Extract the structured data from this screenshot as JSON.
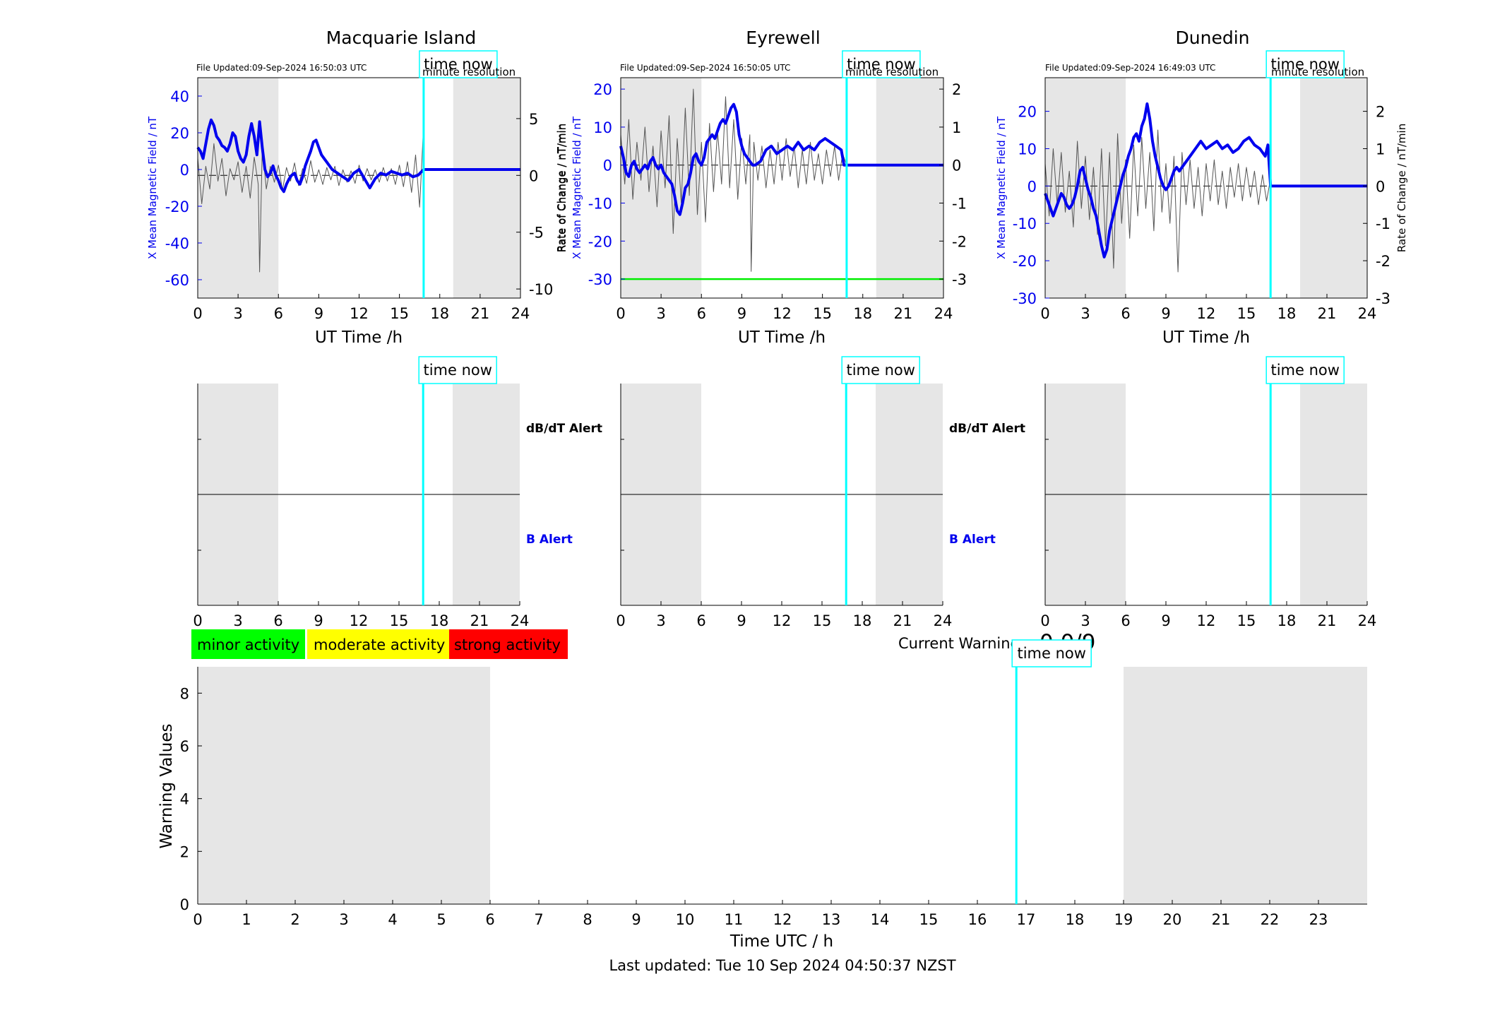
{
  "time_now_label": "time now",
  "legend": {
    "minor": "minor activity",
    "moderate": "moderate activity",
    "strong": "strong activity"
  },
  "current_warning": {
    "label": "Current Warning:",
    "value": "0.0/9"
  },
  "footer": "Last updated: Tue 10 Sep 2024 04:50:37 NZST",
  "colors": {
    "field_line": "#0000ee",
    "rate_line": "#555555",
    "time_now": "#00ffff",
    "night_shade": "#e6e6e6",
    "minor": "#00ff00",
    "moderate": "#ffff00",
    "strong": "#ff0000",
    "threshold": "#00ee00"
  },
  "chart_data": [
    {
      "type": "line",
      "title": "Macquarie Island",
      "file_updated": "File Updated:09-Sep-2024 16:50:03 UTC",
      "resolution": "minute resolution",
      "xlabel": "UT Time /h",
      "ylabel_left": "X Mean Magnetic Field / nT",
      "ylabel_right": "Rate of Change / nT/min",
      "xlim": [
        0,
        24
      ],
      "xticks": [
        0,
        3,
        6,
        9,
        12,
        15,
        18,
        21,
        24
      ],
      "ylim_left": [
        -70,
        50
      ],
      "yticks_left": [
        -60,
        -40,
        -20,
        0,
        20,
        40
      ],
      "ylim_right": [
        -10.8,
        8.6
      ],
      "yticks_right": [
        -10,
        -5,
        0,
        5
      ],
      "time_now": 16.8,
      "shaded_x": [
        [
          0,
          6
        ],
        [
          19,
          24
        ]
      ],
      "series": [
        {
          "axis": "left",
          "x": [
            0,
            0.2,
            0.4,
            0.6,
            0.8,
            1.0,
            1.2,
            1.4,
            1.6,
            1.8,
            2.0,
            2.2,
            2.4,
            2.6,
            2.8,
            3.0,
            3.2,
            3.4,
            3.6,
            3.8,
            4.0,
            4.2,
            4.4,
            4.6,
            4.8,
            5.0,
            5.2,
            5.4,
            5.6,
            5.8,
            6.0,
            6.2,
            6.4,
            6.6,
            6.8,
            7.0,
            7.2,
            7.4,
            7.6,
            7.8,
            8.0,
            8.2,
            8.4,
            8.6,
            8.8,
            9.0,
            9.2,
            9.4,
            9.6,
            9.8,
            10.0,
            10.4,
            10.8,
            11.2,
            11.6,
            12.0,
            12.4,
            12.8,
            13.2,
            13.6,
            14.0,
            14.4,
            14.8,
            15.2,
            15.6,
            16.0,
            16.4,
            16.8,
            17,
            24
          ],
          "y": [
            12,
            10,
            6,
            14,
            22,
            27,
            24,
            18,
            16,
            13,
            12,
            10,
            14,
            20,
            18,
            10,
            6,
            4,
            8,
            18,
            25,
            18,
            8,
            26,
            12,
            0,
            -4,
            -2,
            2,
            -3,
            -6,
            -10,
            -12,
            -8,
            -5,
            -3,
            -2,
            -6,
            -8,
            -4,
            2,
            6,
            10,
            15,
            16,
            12,
            8,
            6,
            4,
            2,
            0,
            -2,
            -4,
            -6,
            -2,
            0,
            -5,
            -10,
            -5,
            -2,
            -3,
            -1,
            -2,
            -3,
            -2,
            -4,
            -3,
            0,
            0,
            0
          ]
        },
        {
          "axis": "right",
          "x": [
            0,
            0.3,
            0.6,
            0.9,
            1.2,
            1.5,
            1.8,
            2.1,
            2.4,
            2.7,
            3.0,
            3.3,
            3.6,
            3.9,
            4.2,
            4.5,
            4.6,
            4.8,
            5.1,
            5.4,
            5.7,
            6.0,
            6.3,
            6.6,
            6.9,
            7.2,
            7.5,
            7.8,
            8.1,
            8.4,
            8.7,
            9.0,
            9.3,
            9.6,
            9.9,
            10.2,
            10.5,
            10.8,
            11.1,
            11.4,
            11.7,
            12.0,
            12.3,
            12.6,
            12.9,
            13.2,
            13.5,
            13.8,
            14.1,
            14.4,
            14.7,
            15.0,
            15.3,
            15.6,
            15.9,
            16.2,
            16.5,
            16.8
          ],
          "y": [
            1.5,
            -2.5,
            0.8,
            -1.2,
            2.8,
            -0.5,
            1.5,
            -1.8,
            0.6,
            -0.4,
            1.2,
            -1.5,
            0.8,
            -2.0,
            1.6,
            -0.8,
            -8.5,
            2.5,
            -1.2,
            0.8,
            -0.6,
            0.9,
            -1.3,
            0.7,
            -0.5,
            1.1,
            -0.9,
            0.6,
            -0.7,
            1.3,
            -0.6,
            0.5,
            -0.8,
            0.7,
            -0.4,
            0.8,
            -0.9,
            0.5,
            -0.6,
            0.4,
            -0.7,
            0.9,
            -0.5,
            0.6,
            -0.4,
            0.5,
            -0.6,
            0.7,
            -0.5,
            0.6,
            -0.8,
            0.9,
            -1.0,
            1.2,
            -1.5,
            1.8,
            -2.8,
            4.5
          ]
        }
      ]
    },
    {
      "type": "line",
      "title": "Eyrewell",
      "file_updated": "File Updated:09-Sep-2024 16:50:05 UTC",
      "resolution": "minute resolution",
      "xlabel": "UT Time /h",
      "ylabel_left": "X Mean Magnetic Field / nT",
      "ylabel_right": "Rate of Change / nT/min",
      "xlim": [
        0,
        24
      ],
      "xticks": [
        0,
        3,
        6,
        9,
        12,
        15,
        18,
        21,
        24
      ],
      "ylim_left": [
        -35,
        23
      ],
      "yticks_left": [
        -30,
        -20,
        -10,
        0,
        10,
        20
      ],
      "ylim_right": [
        -3.5,
        2.3
      ],
      "yticks_right": [
        -3,
        -2,
        -1,
        0,
        1,
        2
      ],
      "time_now": 16.8,
      "threshold_right": -3,
      "shaded_x": [
        [
          0,
          6
        ],
        [
          19,
          24
        ]
      ],
      "series": [
        {
          "axis": "left",
          "x": [
            0,
            0.2,
            0.4,
            0.6,
            0.8,
            1.0,
            1.2,
            1.4,
            1.6,
            1.8,
            2.0,
            2.2,
            2.4,
            2.6,
            2.8,
            3.0,
            3.2,
            3.4,
            3.6,
            3.8,
            4.0,
            4.2,
            4.4,
            4.6,
            4.8,
            5.0,
            5.2,
            5.4,
            5.6,
            5.8,
            6.0,
            6.2,
            6.4,
            6.6,
            6.8,
            7.0,
            7.2,
            7.4,
            7.6,
            7.8,
            8.0,
            8.2,
            8.4,
            8.6,
            8.8,
            9.0,
            9.2,
            9.4,
            9.6,
            9.8,
            10.0,
            10.4,
            10.8,
            11.2,
            11.6,
            12.0,
            12.4,
            12.8,
            13.2,
            13.6,
            14.0,
            14.4,
            14.8,
            15.2,
            15.6,
            16.0,
            16.4,
            16.6,
            16.8,
            17,
            24
          ],
          "y": [
            5,
            2,
            -2,
            -3,
            0,
            1,
            -1,
            -2,
            -1,
            0,
            -1,
            1,
            2,
            0,
            -1,
            0,
            -2,
            -3,
            -4,
            -5,
            -8,
            -12,
            -13,
            -10,
            -6,
            -5,
            -2,
            2,
            3,
            1,
            0,
            2,
            6,
            7,
            8,
            7,
            9,
            11,
            12,
            11,
            13,
            15,
            16,
            14,
            8,
            5,
            3,
            2,
            1,
            0,
            0,
            1,
            4,
            5,
            3,
            4,
            5,
            4,
            6,
            4,
            5,
            4,
            6,
            7,
            6,
            5,
            4,
            0,
            0,
            0,
            0
          ]
        },
        {
          "axis": "right",
          "x": [
            0,
            0.3,
            0.6,
            0.9,
            1.2,
            1.5,
            1.8,
            2.1,
            2.4,
            2.7,
            3.0,
            3.3,
            3.6,
            3.9,
            4.2,
            4.5,
            4.8,
            5.1,
            5.4,
            5.7,
            6.0,
            6.3,
            6.6,
            6.9,
            7.2,
            7.5,
            7.8,
            8.1,
            8.4,
            8.7,
            9.0,
            9.3,
            9.6,
            9.7,
            9.9,
            10.2,
            10.5,
            10.8,
            11.1,
            11.4,
            11.7,
            12.0,
            12.3,
            12.6,
            12.9,
            13.2,
            13.5,
            13.8,
            14.1,
            14.4,
            14.7,
            15.0,
            15.3,
            15.6,
            15.9,
            16.2,
            16.5,
            16.8
          ],
          "y": [
            0.8,
            -0.5,
            1.2,
            -0.9,
            0.6,
            -0.4,
            1.0,
            -0.7,
            0.5,
            -1.1,
            0.9,
            -0.6,
            1.3,
            -1.8,
            0.7,
            -1.0,
            1.5,
            -0.8,
            2.0,
            -1.3,
            0.6,
            -1.5,
            1.1,
            -0.7,
            0.9,
            -0.5,
            1.8,
            -0.6,
            1.2,
            -0.9,
            0.7,
            -0.5,
            0.8,
            -2.8,
            0.6,
            -0.4,
            0.5,
            -0.6,
            0.4,
            -0.5,
            0.6,
            -0.4,
            0.7,
            -0.3,
            0.5,
            -0.6,
            0.4,
            -0.5,
            0.6,
            -0.4,
            0.3,
            -0.5,
            0.4,
            -0.3,
            0.5,
            -0.4,
            0.3,
            0.0
          ]
        }
      ]
    },
    {
      "type": "line",
      "title": "Dunedin",
      "file_updated": "File Updated:09-Sep-2024 16:49:03 UTC",
      "resolution": "minute resolution",
      "xlabel": "UT Time /h",
      "ylabel_left": "X Mean Magnetic Field / nT",
      "ylabel_right": "Rate of Change / nT/min",
      "xlim": [
        0,
        24
      ],
      "xticks": [
        0,
        3,
        6,
        9,
        12,
        15,
        18,
        21,
        24
      ],
      "ylim_left": [
        -30,
        29
      ],
      "yticks_left": [
        -30,
        -20,
        -10,
        0,
        10,
        20
      ],
      "ylim_right": [
        -3,
        2.9
      ],
      "yticks_right": [
        -3,
        -2,
        -1,
        0,
        1,
        2
      ],
      "time_now": 16.8,
      "shaded_x": [
        [
          0,
          6
        ],
        [
          19,
          24
        ]
      ],
      "series": [
        {
          "axis": "left",
          "x": [
            0,
            0.2,
            0.4,
            0.6,
            0.8,
            1.0,
            1.2,
            1.4,
            1.6,
            1.8,
            2.0,
            2.2,
            2.4,
            2.6,
            2.8,
            3.0,
            3.2,
            3.4,
            3.6,
            3.8,
            4.0,
            4.2,
            4.4,
            4.6,
            4.8,
            5.0,
            5.2,
            5.4,
            5.6,
            5.8,
            6.0,
            6.2,
            6.4,
            6.6,
            6.8,
            7.0,
            7.2,
            7.4,
            7.6,
            7.8,
            8.0,
            8.2,
            8.4,
            8.6,
            8.8,
            9.0,
            9.2,
            9.4,
            9.6,
            9.8,
            10.0,
            10.4,
            10.8,
            11.2,
            11.6,
            12.0,
            12.4,
            12.8,
            13.2,
            13.6,
            14.0,
            14.4,
            14.8,
            15.2,
            15.6,
            16.0,
            16.4,
            16.6,
            16.8,
            17,
            24
          ],
          "y": [
            -2,
            -4,
            -6,
            -8,
            -6,
            -4,
            -2,
            -3,
            -5,
            -6,
            -5,
            -3,
            0,
            4,
            5,
            2,
            -1,
            -3,
            -6,
            -8,
            -12,
            -16,
            -19,
            -17,
            -12,
            -9,
            -6,
            -3,
            0,
            3,
            5,
            8,
            10,
            13,
            14,
            12,
            16,
            18,
            22,
            18,
            12,
            8,
            5,
            2,
            0,
            -1,
            0,
            2,
            4,
            5,
            4,
            6,
            8,
            10,
            12,
            10,
            11,
            12,
            10,
            11,
            9,
            10,
            12,
            13,
            11,
            10,
            8,
            11,
            0,
            0,
            0
          ]
        },
        {
          "axis": "right",
          "x": [
            0,
            0.3,
            0.6,
            0.9,
            1.2,
            1.5,
            1.8,
            2.1,
            2.4,
            2.7,
            3.0,
            3.3,
            3.6,
            3.9,
            4.2,
            4.5,
            4.8,
            5.1,
            5.4,
            5.7,
            6.0,
            6.3,
            6.6,
            6.9,
            7.2,
            7.5,
            7.8,
            8.1,
            8.4,
            8.7,
            9.0,
            9.3,
            9.6,
            9.9,
            10.2,
            10.5,
            10.8,
            11.1,
            11.4,
            11.7,
            12.0,
            12.3,
            12.6,
            12.9,
            13.2,
            13.5,
            13.8,
            14.1,
            14.4,
            14.7,
            15.0,
            15.3,
            15.6,
            15.9,
            16.2,
            16.5,
            16.8
          ],
          "y": [
            0.6,
            -0.8,
            1.0,
            -0.5,
            0.9,
            -0.7,
            0.4,
            -1.1,
            1.2,
            -0.6,
            0.8,
            -0.9,
            0.5,
            -1.3,
            1.0,
            -1.6,
            0.9,
            -2.2,
            1.4,
            -1.0,
            0.7,
            -1.4,
            1.1,
            -0.8,
            1.3,
            -0.6,
            0.9,
            -1.2,
            1.5,
            -0.7,
            0.6,
            -1.0,
            0.8,
            -2.3,
            0.9,
            -0.5,
            0.7,
            -0.6,
            0.5,
            -0.8,
            0.6,
            -0.4,
            0.7,
            -0.5,
            0.4,
            -0.6,
            0.5,
            -0.3,
            0.6,
            -0.4,
            0.5,
            -0.3,
            0.4,
            -0.5,
            0.3,
            -0.4,
            0.2
          ]
        }
      ]
    },
    {
      "type": "line",
      "title": "",
      "alert_label_db": "dB/dT Alert",
      "alert_label_b": "B Alert",
      "xlim": [
        0,
        24
      ],
      "xticks": [
        0,
        3,
        6,
        9,
        12,
        15,
        18,
        21,
        24
      ],
      "time_now": 16.8,
      "shaded_x": [
        [
          0,
          6
        ],
        [
          19,
          24
        ]
      ]
    },
    {
      "type": "line",
      "title": "",
      "alert_label_db": "dB/dT Alert",
      "alert_label_b": "B Alert",
      "xlim": [
        0,
        24
      ],
      "xticks": [
        0,
        3,
        6,
        9,
        12,
        15,
        18,
        21,
        24
      ],
      "time_now": 16.8,
      "shaded_x": [
        [
          0,
          6
        ],
        [
          19,
          24
        ]
      ]
    },
    {
      "type": "line",
      "title": "",
      "xlim": [
        0,
        24
      ],
      "xticks": [
        0,
        3,
        6,
        9,
        12,
        15,
        18,
        21,
        24
      ],
      "time_now": 16.8,
      "shaded_x": [
        [
          0,
          6
        ],
        [
          19,
          24
        ]
      ]
    },
    {
      "type": "bar",
      "title": "",
      "xlabel": "Time UTC / h",
      "ylabel": "Warning Values",
      "xlim": [
        0,
        24
      ],
      "xticks": [
        0,
        1,
        2,
        3,
        4,
        5,
        6,
        7,
        8,
        9,
        10,
        11,
        12,
        13,
        14,
        15,
        16,
        17,
        18,
        19,
        20,
        21,
        22,
        23
      ],
      "ylim": [
        0,
        9
      ],
      "yticks": [
        0,
        2,
        4,
        6,
        8
      ],
      "time_now": 16.8,
      "shaded_x": [
        [
          0,
          6
        ],
        [
          19,
          24
        ]
      ],
      "values": []
    }
  ]
}
